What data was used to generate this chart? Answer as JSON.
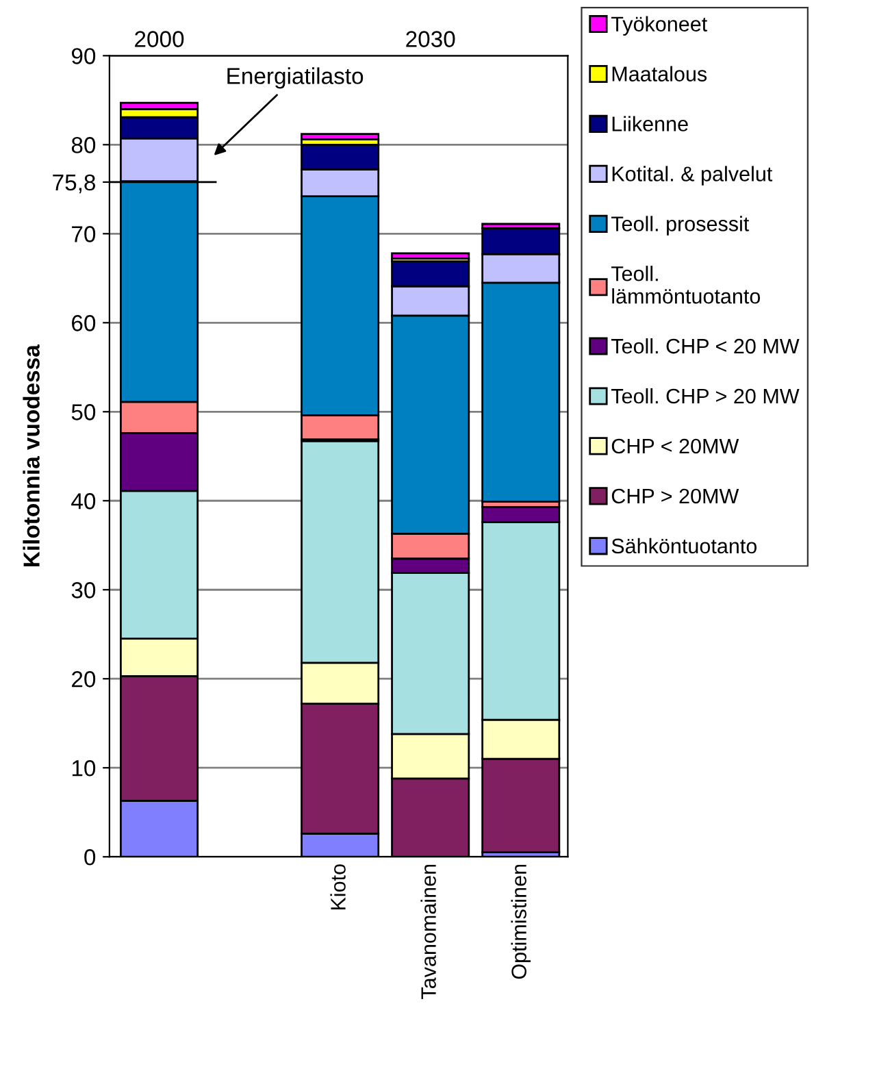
{
  "chart_data": {
    "type": "bar",
    "stacked": true,
    "ylabel": "Kilotonnia vuodessa",
    "categories": [
      null,
      null,
      "Kioto",
      "Tavanomainen",
      "Optimistinen"
    ],
    "series": [
      {
        "name": "Sähköntuotanto",
        "color": "#8080ff",
        "values": [
          6.3,
          null,
          2.6,
          null,
          0.5
        ]
      },
      {
        "name": "CHP > 20MW",
        "color": "#802060",
        "values": [
          14.0,
          null,
          14.6,
          8.8,
          10.5
        ]
      },
      {
        "name": "CHP < 20MW",
        "color": "#ffffc0",
        "values": [
          4.2,
          null,
          4.6,
          5.0,
          4.4
        ]
      },
      {
        "name": "Teoll. CHP > 20 MW",
        "color": "#a6e0e0",
        "values": [
          16.6,
          null,
          24.9,
          18.1,
          22.2
        ]
      },
      {
        "name": "Teoll. CHP < 20 MW",
        "color": "#600080",
        "values": [
          6.5,
          null,
          0.2,
          1.6,
          1.7
        ]
      },
      {
        "name": "Teoll.\nlämmöntuotanto",
        "color": "#ff8080",
        "values": [
          3.5,
          null,
          2.7,
          2.8,
          0.6
        ]
      },
      {
        "name": "Teoll. prosessit",
        "color": "#0080c0",
        "values": [
          24.8,
          null,
          24.6,
          24.5,
          24.6
        ]
      },
      {
        "name": "Kotital. & palvelut",
        "color": "#c0c0ff",
        "values": [
          4.8,
          null,
          3.0,
          3.3,
          3.2
        ]
      },
      {
        "name": "Liikenne",
        "color": "#000080",
        "values": [
          2.4,
          null,
          2.8,
          2.8,
          2.9
        ]
      },
      {
        "name": "Maatalous",
        "color": "#ffff00",
        "values": [
          0.9,
          null,
          0.6,
          0.3,
          null
        ]
      },
      {
        "name": "Työkoneet",
        "color": "#ff00ff",
        "values": [
          0.7,
          null,
          0.6,
          0.6,
          0.5
        ]
      }
    ],
    "ylim": [
      0,
      90
    ],
    "yticks": [
      0,
      10,
      20,
      30,
      40,
      50,
      60,
      70,
      {
        "value": 75.8,
        "label": "75,8"
      },
      80,
      90
    ],
    "ref_lines": [
      {
        "axis": "y",
        "value": 75.8,
        "color": "#000000"
      }
    ],
    "annotations": [
      "2000",
      "2030",
      "Energiatilasto"
    ],
    "grid": "y",
    "legend": "right"
  }
}
